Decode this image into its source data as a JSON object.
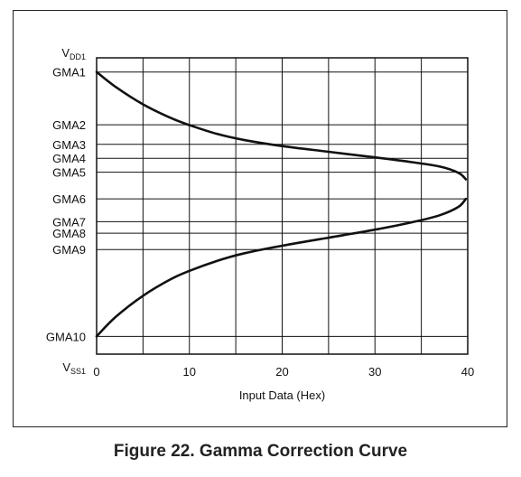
{
  "caption": "Figure 22. Gamma Correction Curve",
  "chart_data": {
    "type": "line",
    "title": "",
    "xlabel": "Input Data (Hex)",
    "ylabel": "",
    "xlim": [
      0,
      40
    ],
    "x_ticks": [
      0,
      10,
      20,
      30,
      40
    ],
    "grid": true,
    "legend": "none",
    "y_levels": [
      {
        "name": "VDD1",
        "main": "V",
        "sub": "DD1",
        "level": 1.0
      },
      {
        "name": "GMA1",
        "main": "GMA1",
        "sub": "",
        "level": 0.952
      },
      {
        "name": "GMA2",
        "main": "GMA2",
        "sub": "",
        "level": 0.774
      },
      {
        "name": "GMA3",
        "main": "GMA3",
        "sub": "",
        "level": 0.708
      },
      {
        "name": "GMA4",
        "main": "GMA4",
        "sub": "",
        "level": 0.661
      },
      {
        "name": "GMA5",
        "main": "GMA5",
        "sub": "",
        "level": 0.614
      },
      {
        "name": "GMA6",
        "main": "GMA6",
        "sub": "",
        "level": 0.524
      },
      {
        "name": "GMA7",
        "main": "GMA7",
        "sub": "",
        "level": 0.447
      },
      {
        "name": "GMA8",
        "main": "GMA8",
        "sub": "",
        "level": 0.408
      },
      {
        "name": "GMA9",
        "main": "GMA9",
        "sub": "",
        "level": 0.353
      },
      {
        "name": "GMA10",
        "main": "GMA10",
        "sub": "",
        "level": 0.06
      },
      {
        "name": "VSS1",
        "main": "V",
        "sub": "SS1",
        "level": 0.0
      }
    ],
    "series": [
      {
        "color": "#111111",
        "points": [
          [
            0,
            0.952
          ],
          [
            2,
            0.903
          ],
          [
            5,
            0.843
          ],
          [
            8,
            0.797
          ],
          [
            10,
            0.773
          ],
          [
            13,
            0.743
          ],
          [
            16,
            0.722
          ],
          [
            20,
            0.702
          ],
          [
            25,
            0.683
          ],
          [
            30,
            0.664
          ],
          [
            34,
            0.648
          ],
          [
            37,
            0.633
          ],
          [
            39,
            0.612
          ],
          [
            39.8,
            0.59
          ]
        ]
      },
      {
        "color": "#111111",
        "points": [
          [
            0,
            0.06
          ],
          [
            2,
            0.124
          ],
          [
            5,
            0.197
          ],
          [
            8,
            0.253
          ],
          [
            10,
            0.281
          ],
          [
            13,
            0.315
          ],
          [
            16,
            0.341
          ],
          [
            20,
            0.366
          ],
          [
            25,
            0.393
          ],
          [
            30,
            0.42
          ],
          [
            34,
            0.445
          ],
          [
            37,
            0.469
          ],
          [
            39,
            0.497
          ],
          [
            39.8,
            0.524
          ]
        ]
      }
    ]
  }
}
